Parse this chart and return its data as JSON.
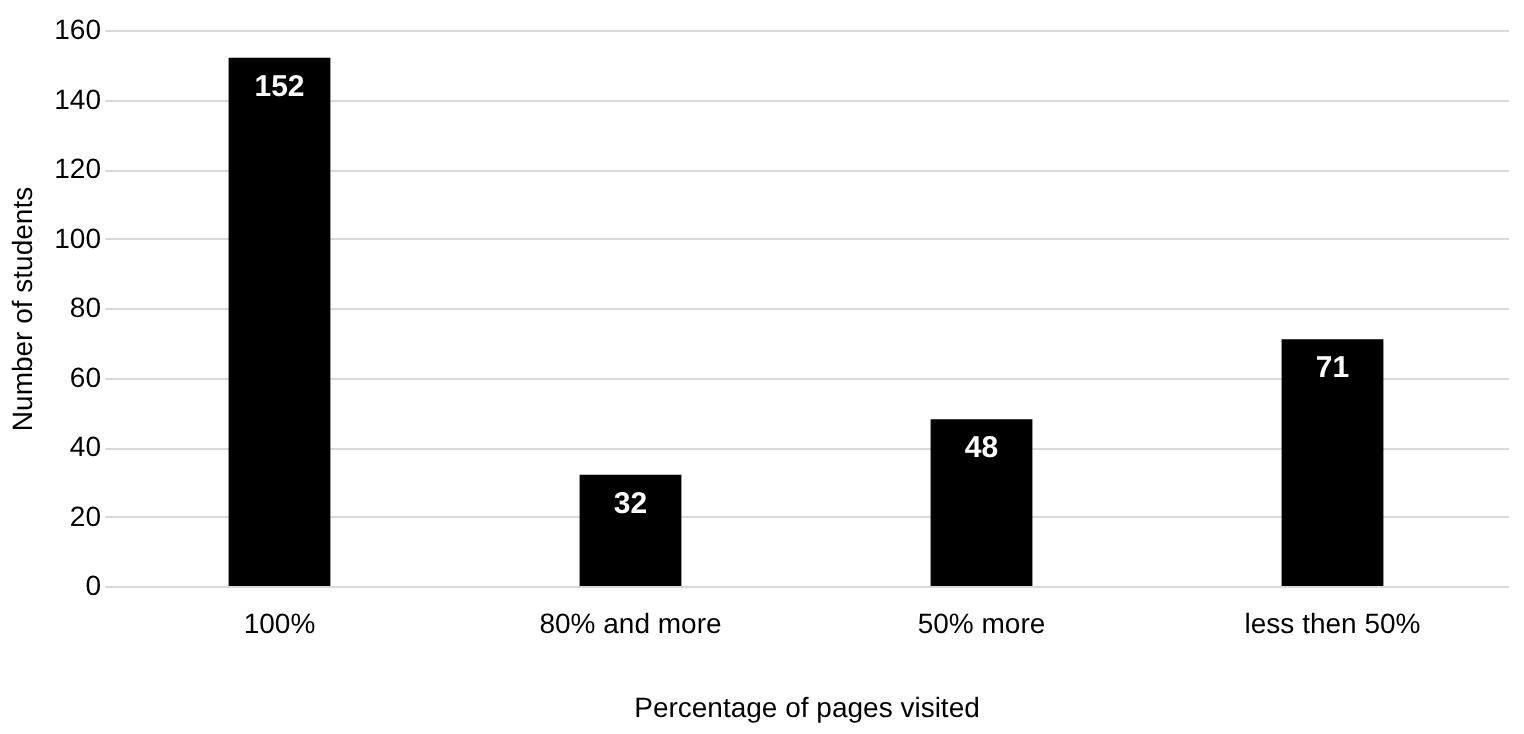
{
  "chart_data": {
    "type": "bar",
    "xlabel": "Percentage of pages visited",
    "ylabel": "Number of students",
    "categories": [
      "100%",
      "80% and more",
      "50% more",
      "less then 50%"
    ],
    "values": [
      152,
      32,
      48,
      71
    ],
    "color": "#000000",
    "ylim": [
      0,
      160
    ],
    "yticks": [
      0,
      20,
      40,
      60,
      80,
      100,
      120,
      140,
      160
    ],
    "grid": "y",
    "data_labels": true
  }
}
